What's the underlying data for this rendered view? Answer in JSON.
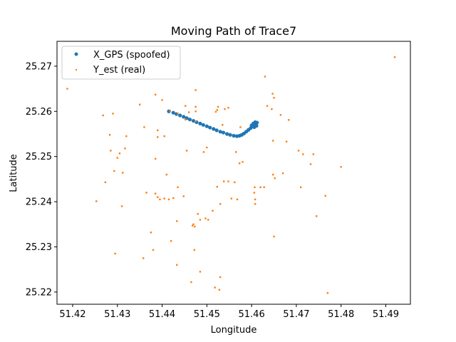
{
  "chart_data": {
    "type": "scatter",
    "title": "Moving Path of Trace7",
    "xlabel": "Longitude",
    "ylabel": "Latitude",
    "xlim": [
      51.4165,
      51.4955
    ],
    "ylim": [
      25.2173,
      25.2755
    ],
    "xticks": [
      51.42,
      51.43,
      51.44,
      51.45,
      51.46,
      51.47,
      51.48,
      51.49
    ],
    "xtick_labels": [
      "51.42",
      "51.43",
      "51.44",
      "51.45",
      "51.46",
      "51.47",
      "51.48",
      "51.49"
    ],
    "yticks": [
      25.22,
      25.23,
      25.24,
      25.25,
      25.26,
      25.27
    ],
    "ytick_labels": [
      "25.22",
      "25.23",
      "25.24",
      "25.25",
      "25.26",
      "25.27"
    ],
    "grid": false,
    "legend_position": "top-left",
    "series": [
      {
        "name": "X_GPS (spoofed)",
        "color": "#1f77b4",
        "marker": "circle",
        "points": [
          [
            51.4415,
            25.26
          ],
          [
            51.4425,
            25.2597
          ],
          [
            51.4432,
            25.2594
          ],
          [
            51.444,
            25.2591
          ],
          [
            51.4448,
            25.2588
          ],
          [
            51.4455,
            25.2585
          ],
          [
            51.4462,
            25.2582
          ],
          [
            51.447,
            25.2579
          ],
          [
            51.4477,
            25.2576
          ],
          [
            51.4485,
            25.2573
          ],
          [
            51.4492,
            25.257
          ],
          [
            51.45,
            25.2567
          ],
          [
            51.4507,
            25.2564
          ],
          [
            51.4515,
            25.2561
          ],
          [
            51.4522,
            25.2558
          ],
          [
            51.453,
            25.2555
          ],
          [
            51.4537,
            25.2553
          ],
          [
            51.4545,
            25.255
          ],
          [
            51.4552,
            25.2548
          ],
          [
            51.456,
            25.2546
          ],
          [
            51.4567,
            25.2545
          ],
          [
            51.4573,
            25.2546
          ],
          [
            51.4578,
            25.2548
          ],
          [
            51.4583,
            25.2551
          ],
          [
            51.4588,
            25.2555
          ],
          [
            51.4593,
            25.2559
          ],
          [
            51.4598,
            25.2563
          ],
          [
            51.4603,
            25.2567
          ],
          [
            51.4607,
            25.257
          ],
          [
            51.461,
            25.2573
          ],
          [
            51.4612,
            25.2575
          ],
          [
            51.4608,
            25.2576
          ],
          [
            51.4604,
            25.2573
          ],
          [
            51.46,
            25.2569
          ],
          [
            51.4606,
            25.2565
          ],
          [
            51.4611,
            25.2568
          ]
        ]
      },
      {
        "name": "Y_est (real)",
        "color": "#ff7f0e",
        "marker": "square",
        "points": [
          [
            51.492,
            25.272
          ],
          [
            51.4188,
            25.265
          ],
          [
            51.463,
            25.2677
          ],
          [
            51.4647,
            25.2639
          ],
          [
            51.465,
            25.263
          ],
          [
            51.4475,
            25.2647
          ],
          [
            51.4385,
            25.2637
          ],
          [
            51.44,
            25.2625
          ],
          [
            51.435,
            25.2615
          ],
          [
            51.429,
            25.2595
          ],
          [
            51.4268,
            25.2591
          ],
          [
            51.4418,
            25.2601
          ],
          [
            51.4452,
            25.2612
          ],
          [
            51.4475,
            25.261
          ],
          [
            51.4475,
            25.26
          ],
          [
            51.4435,
            25.2595
          ],
          [
            51.446,
            25.2598
          ],
          [
            51.4523,
            25.2603
          ],
          [
            51.4525,
            25.261
          ],
          [
            51.454,
            25.2605
          ],
          [
            51.4548,
            25.2608
          ],
          [
            51.452,
            25.2599
          ],
          [
            51.4452,
            25.2582
          ],
          [
            51.4475,
            25.2578
          ],
          [
            51.4535,
            25.257
          ],
          [
            51.4575,
            25.2565
          ],
          [
            51.4635,
            25.2612
          ],
          [
            51.4645,
            25.2605
          ],
          [
            51.4665,
            25.2592
          ],
          [
            51.4683,
            25.2581
          ],
          [
            51.436,
            25.2565
          ],
          [
            51.439,
            25.2558
          ],
          [
            51.432,
            25.2545
          ],
          [
            51.4283,
            25.2548
          ],
          [
            51.439,
            25.2543
          ],
          [
            51.4405,
            25.2545
          ],
          [
            51.4285,
            25.2513
          ],
          [
            51.4317,
            25.2518
          ],
          [
            51.4305,
            25.2507
          ],
          [
            51.43,
            25.2497
          ],
          [
            51.4385,
            25.2495
          ],
          [
            51.4455,
            25.2513
          ],
          [
            51.4493,
            25.251
          ],
          [
            51.45,
            25.252
          ],
          [
            51.4565,
            25.251
          ],
          [
            51.458,
            25.2488
          ],
          [
            51.4573,
            25.2485
          ],
          [
            51.4648,
            25.2535
          ],
          [
            51.4678,
            25.2533
          ],
          [
            51.4705,
            25.2513
          ],
          [
            51.4715,
            25.2505
          ],
          [
            51.4738,
            25.2505
          ],
          [
            51.4732,
            25.2483
          ],
          [
            51.48,
            25.2477
          ],
          [
            51.4293,
            25.2468
          ],
          [
            51.4312,
            25.2464
          ],
          [
            51.4273,
            25.2443
          ],
          [
            51.441,
            25.246
          ],
          [
            51.4648,
            25.246
          ],
          [
            51.4652,
            25.2452
          ],
          [
            51.467,
            25.2463
          ],
          [
            51.4538,
            25.2445
          ],
          [
            51.4548,
            25.2445
          ],
          [
            51.4562,
            25.2443
          ],
          [
            51.4523,
            25.2433
          ],
          [
            51.4607,
            25.2432
          ],
          [
            51.462,
            25.2432
          ],
          [
            51.4628,
            25.2432
          ],
          [
            51.471,
            25.2432
          ],
          [
            51.4435,
            25.2432
          ],
          [
            51.4365,
            25.242
          ],
          [
            51.4385,
            25.2418
          ],
          [
            51.439,
            25.241
          ],
          [
            51.4395,
            25.2405
          ],
          [
            51.4405,
            25.2407
          ],
          [
            51.4415,
            25.2405
          ],
          [
            51.4425,
            25.2408
          ],
          [
            51.4448,
            25.2412
          ],
          [
            51.4555,
            25.2407
          ],
          [
            51.4568,
            25.2405
          ],
          [
            51.4606,
            25.242
          ],
          [
            51.4608,
            25.2405
          ],
          [
            51.4765,
            25.2413
          ],
          [
            51.4608,
            25.2395
          ],
          [
            51.4253,
            25.2401
          ],
          [
            51.431,
            25.239
          ],
          [
            51.453,
            25.2395
          ],
          [
            51.4513,
            25.238
          ],
          [
            51.448,
            25.2373
          ],
          [
            51.4497,
            25.2363
          ],
          [
            51.4503,
            25.236
          ],
          [
            51.4485,
            25.236
          ],
          [
            51.4745,
            25.2368
          ],
          [
            51.4433,
            25.2357
          ],
          [
            51.4468,
            25.2347
          ],
          [
            51.447,
            25.235
          ],
          [
            51.4473,
            25.2345
          ],
          [
            51.4375,
            25.2332
          ],
          [
            51.465,
            25.2323
          ],
          [
            51.442,
            25.2313
          ],
          [
            51.4472,
            25.2293
          ],
          [
            51.438,
            25.2293
          ],
          [
            51.4295,
            25.2285
          ],
          [
            51.4358,
            25.2275
          ],
          [
            51.4433,
            25.226
          ],
          [
            51.4485,
            25.2245
          ],
          [
            51.453,
            25.2233
          ],
          [
            51.4465,
            25.2222
          ],
          [
            51.4518,
            25.221
          ],
          [
            51.4528,
            25.2205
          ],
          [
            51.477,
            25.2198
          ]
        ]
      }
    ]
  }
}
